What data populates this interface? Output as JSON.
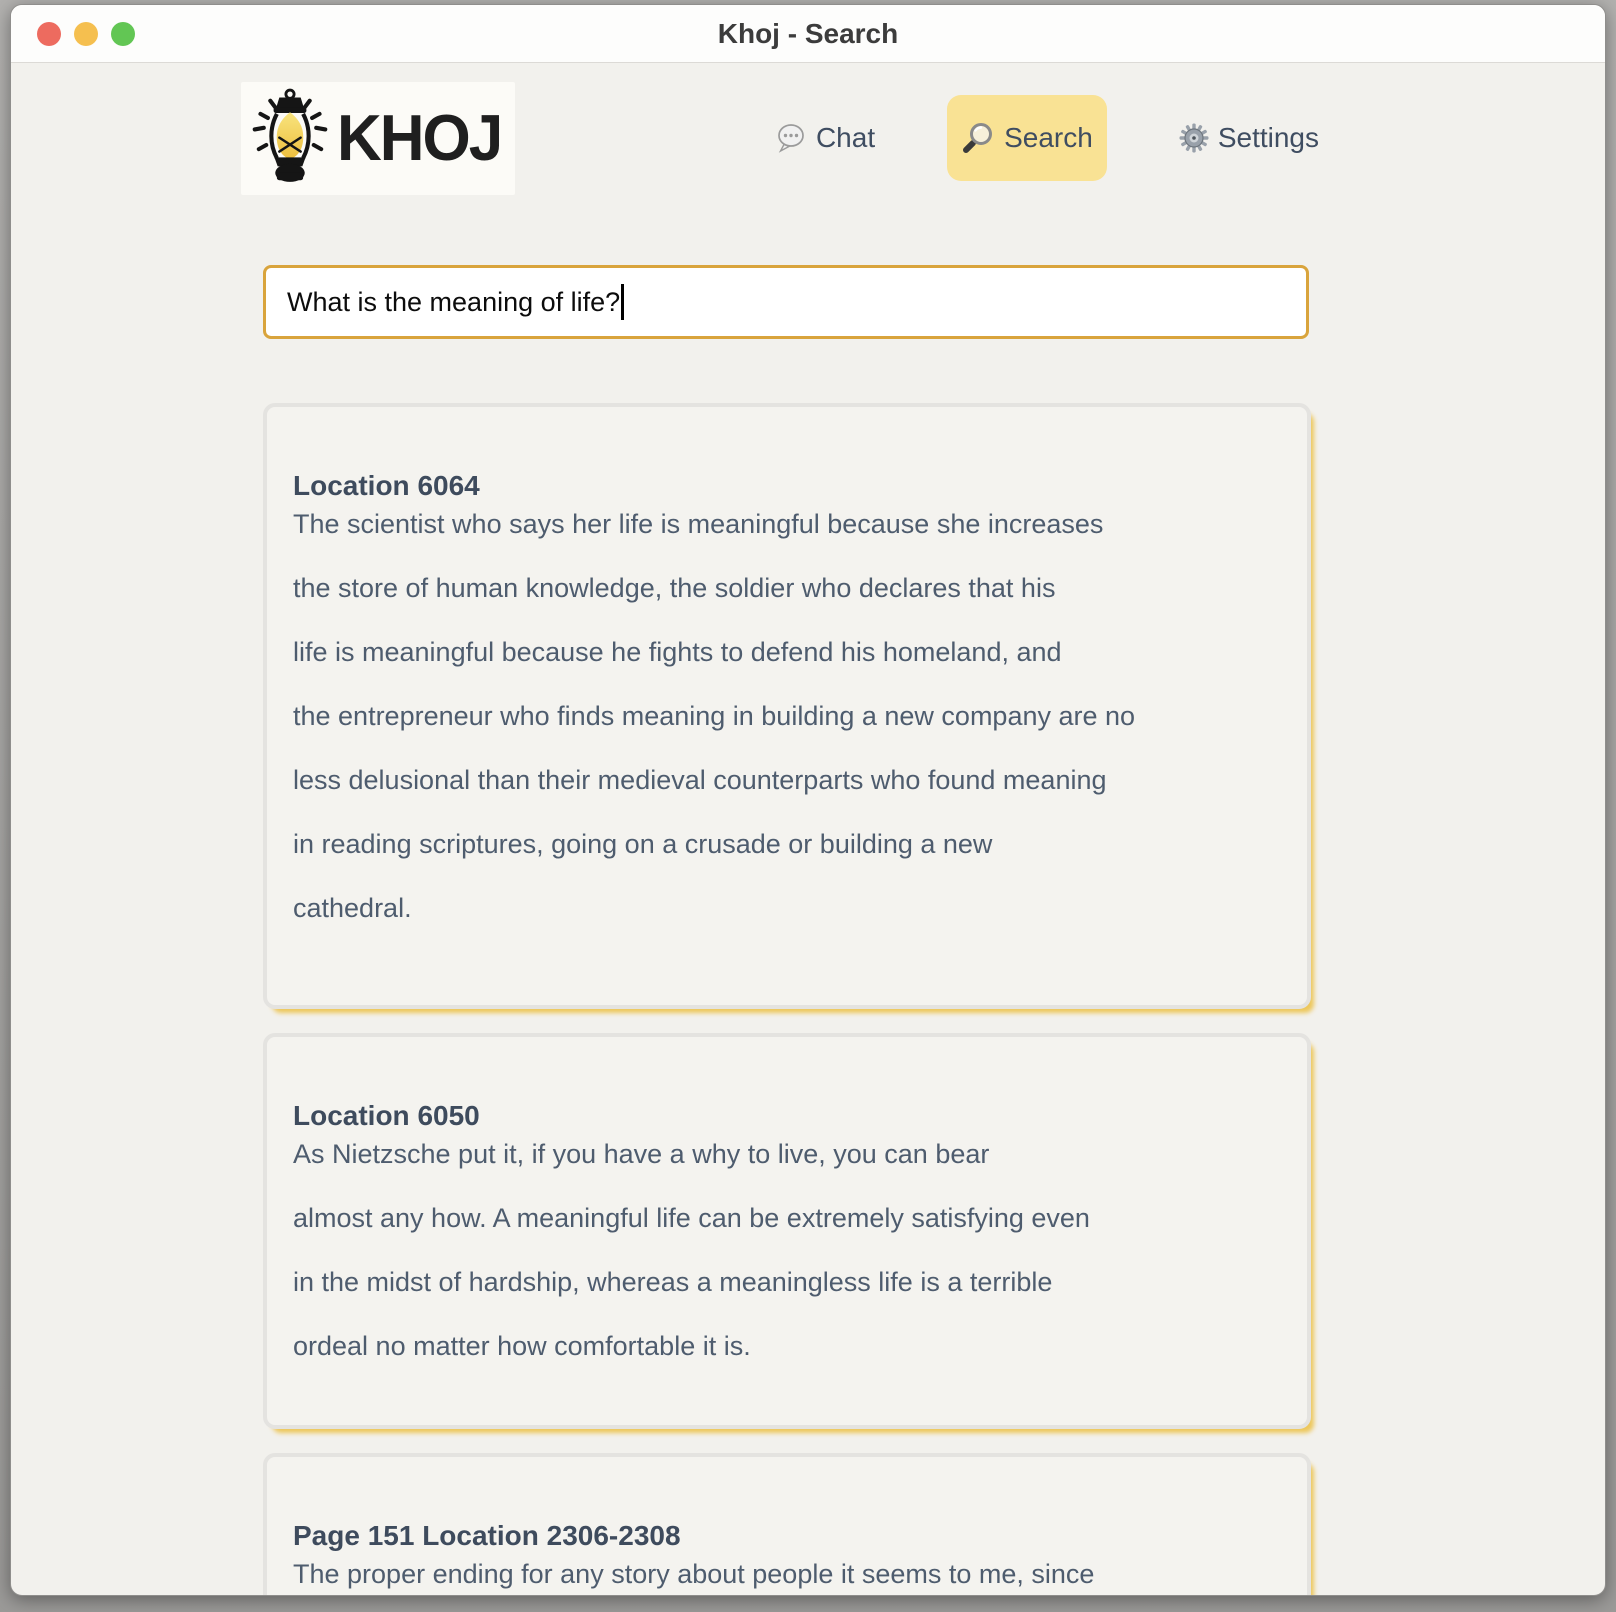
{
  "window": {
    "title": "Khoj - Search"
  },
  "titlebar_buttons": {
    "close": "close",
    "minimize": "minimize",
    "zoom": "zoom"
  },
  "brand": {
    "name": "KHOJ",
    "logo_icon": "lantern-icon"
  },
  "nav": [
    {
      "id": "chat",
      "label": "Chat",
      "icon": "speech-bubble-icon",
      "active": false
    },
    {
      "id": "search",
      "label": "Search",
      "icon": "magnifier-icon",
      "active": true
    },
    {
      "id": "settings",
      "label": "Settings",
      "icon": "gear-icon",
      "active": false
    }
  ],
  "search": {
    "value": "What is the meaning of life?"
  },
  "results": [
    {
      "heading": "Location 6064",
      "lines": [
        "The scientist who says her life is meaningful because she increases",
        "the store of human knowledge, the soldier who declares that his",
        "life is meaningful because he fights to defend his homeland, and",
        "the entrepreneur who finds meaning in building a new company are no",
        "less delusional than their medieval counterparts who found meaning",
        "in reading scriptures, going on a crusade or building a new",
        "cathedral."
      ]
    },
    {
      "heading": "Location 6050",
      "lines": [
        "As Nietzsche put it, if you have a why to live, you can bear",
        "almost any how. A meaningful life can be extremely satisfying even",
        "in the midst of hardship, whereas a meaningless life is a terrible",
        "ordeal no matter how comfortable it is."
      ]
    },
    {
      "heading": "Page 151 Location 2306-2308",
      "lines": [
        "The proper ending for any story about people it seems to me, since"
      ]
    }
  ],
  "colors": {
    "nav_active_bg": "#f9e294",
    "card_shadow": "#edc75a",
    "input_border": "#d9a43c",
    "heading_text": "#3e4b5d",
    "body_text": "#4e5c6e",
    "traffic_red": "#ed6b5f",
    "traffic_yellow": "#f5bf4f",
    "traffic_green": "#62c654"
  }
}
